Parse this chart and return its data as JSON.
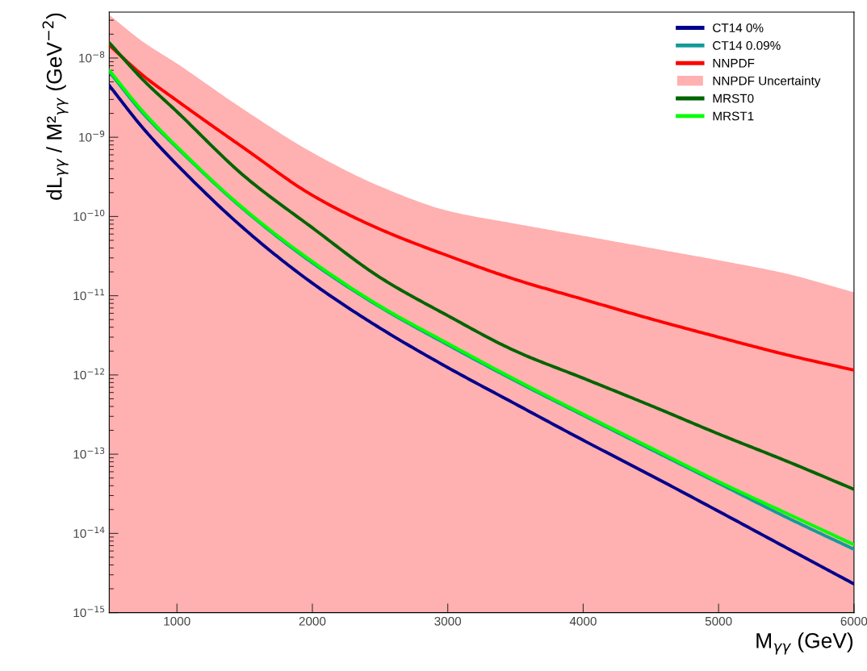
{
  "chart_data": {
    "type": "line",
    "xlabel": "M$_{γγ}$ (GeV)",
    "ylabel": "dL$_{γγ}$ / M²$_{γγ}$ (GeV$^{−2}$)",
    "log": "y",
    "grid": false,
    "legend": "top right",
    "x": [
      500,
      750,
      1000,
      1500,
      2000,
      2500,
      3000,
      3500,
      4000,
      4500,
      5000,
      5500,
      6000
    ],
    "xlim": [
      500,
      6000
    ],
    "xticks": [
      1000,
      2000,
      3000,
      4000,
      5000,
      6000
    ],
    "ylim": [
      1e-15,
      3.8e-08
    ],
    "yticks": [
      {
        "value": 1e-15,
        "label": "10$^{−15}$"
      },
      {
        "value": 1e-14,
        "label": "10$^{−14}$"
      },
      {
        "value": 1e-13,
        "label": "10$^{−13}$"
      },
      {
        "value": 1e-12,
        "label": "10$^{−12}$"
      },
      {
        "value": 1e-11,
        "label": "10$^{−11}$"
      },
      {
        "value": 1e-10,
        "label": "10$^{−10}$"
      },
      {
        "value": 1e-09,
        "label": "10$^{−9}$"
      },
      {
        "value": 1e-08,
        "label": "10$^{−8}$"
      }
    ],
    "series": [
      {
        "name": "NNPDF Uncertainty",
        "type": "area",
        "color": "#ffb0b0",
        "values": [
          3.5e-08,
          1.6e-08,
          8.5e-09,
          2.2e-09,
          6.4e-10,
          2.4e-10,
          1.18e-10,
          8.1e-11,
          5.7e-11,
          4e-11,
          2.8e-11,
          1.9e-11,
          1.1e-11
        ]
      },
      {
        "name": "CT14 0%",
        "color": "#00008b",
        "values": [
          4.5e-09,
          1.3e-09,
          4.5e-10,
          6.9e-11,
          1.44e-11,
          3.9e-12,
          1.24e-12,
          4.3e-13,
          1.5e-13,
          5.4e-14,
          1.9e-14,
          6.6e-15,
          2.3e-15
        ]
      },
      {
        "name": "CT14 0.09%",
        "color": "#139a9a",
        "values": [
          6.7e-09,
          2e-09,
          7.4e-10,
          1.2e-10,
          2.6e-11,
          7.2e-12,
          2.4e-12,
          8.4e-13,
          3.1e-13,
          1.15e-13,
          4.3e-14,
          1.6e-14,
          6.3e-15
        ]
      },
      {
        "name": "NNPDF",
        "color": "#ff0000",
        "values": [
          1.45e-08,
          6e-09,
          2.9e-09,
          7.2e-10,
          1.85e-10,
          6.9e-11,
          3.2e-11,
          1.6e-11,
          9e-12,
          5.1e-12,
          3e-12,
          1.8e-12,
          1.15e-12
        ]
      },
      {
        "name": "MRST0",
        "color": "#006400",
        "values": [
          1.56e-08,
          5.3e-09,
          2.1e-09,
          3.2e-10,
          7.2e-11,
          1.7e-11,
          5.6e-12,
          2e-12,
          9.1e-13,
          4.1e-13,
          1.8e-13,
          8.2e-14,
          3.6e-14
        ]
      },
      {
        "name": "MRST1",
        "color": "#00ff00",
        "values": [
          7e-09,
          2.1e-09,
          7.6e-10,
          1.23e-10,
          2.7e-11,
          7.4e-12,
          2.5e-12,
          8.7e-13,
          3.2e-13,
          1.2e-13,
          4.5e-14,
          1.8e-14,
          7.2e-15
        ]
      }
    ]
  }
}
